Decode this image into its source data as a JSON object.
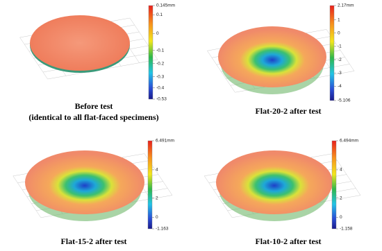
{
  "panels": [
    {
      "caption": [
        "Before test",
        "(identical to all flat-faced specimens)"
      ],
      "colorbar": [
        "0.145mm",
        "0.1",
        "0",
        "-0.1",
        "-0.2",
        "-0.3",
        "-0.4",
        "-0.53"
      ]
    },
    {
      "caption": [
        "Flat-20-2 after test"
      ],
      "colorbar": [
        "2.17mm",
        "1",
        "0",
        "-1",
        "-2",
        "-3",
        "-4",
        "-5.106"
      ]
    },
    {
      "caption": [
        "Flat-15-2 after test"
      ],
      "colorbar": [
        "6.491mm",
        "4",
        "2",
        "0",
        "-1.163"
      ]
    },
    {
      "caption": [
        "Flat-10-2 after test"
      ],
      "colorbar": [
        "6.494mm",
        "4",
        "2",
        "0",
        "-1.158"
      ]
    }
  ]
}
